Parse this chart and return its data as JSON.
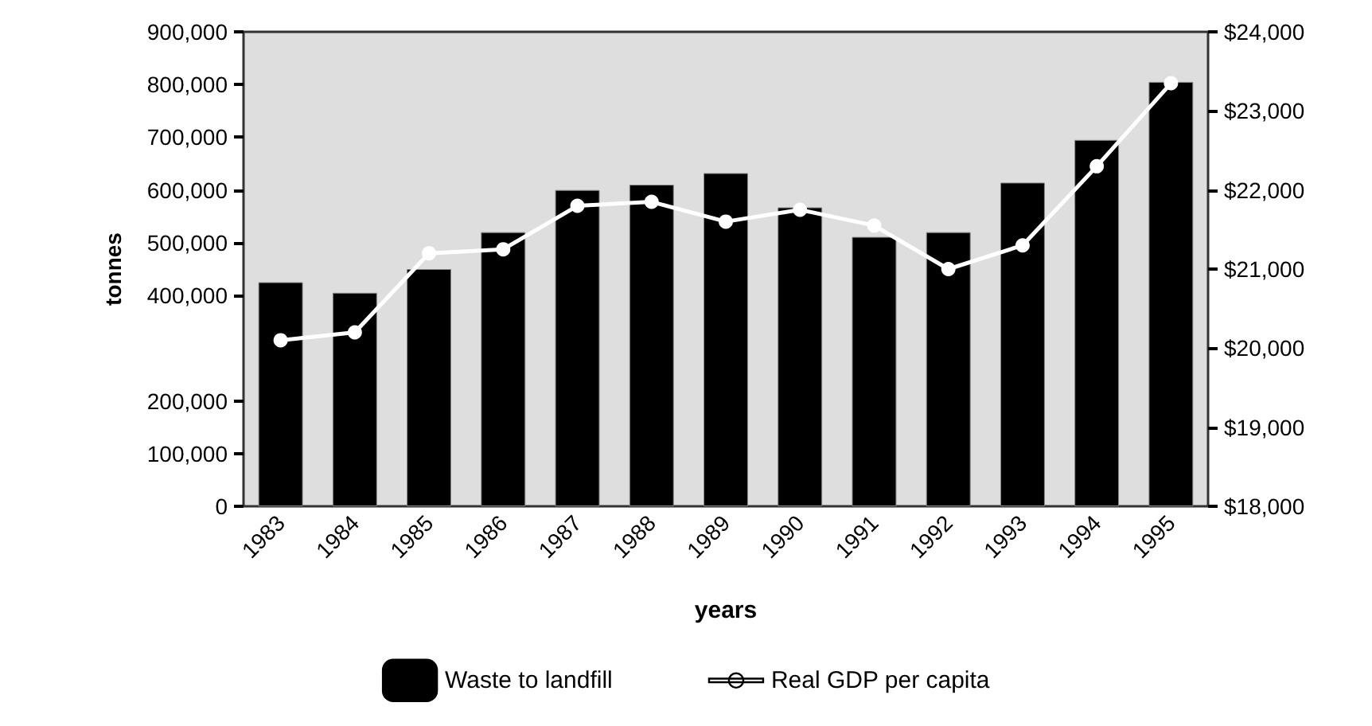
{
  "chart_data": {
    "type": "bar",
    "xlabel": "years",
    "ylabel": "tonnes",
    "categories": [
      "1983",
      "1984",
      "1985",
      "1986",
      "1987",
      "1988",
      "1989",
      "1990",
      "1991",
      "1992",
      "1993",
      "1994",
      "1995"
    ],
    "series": [
      {
        "name": "Waste to landfill",
        "color": "#000000",
        "values": [
          425000,
          405000,
          450000,
          520000,
          600000,
          610000,
          632000,
          567000,
          511000,
          520000,
          614000,
          695000,
          805000
        ]
      },
      {
        "name": "Real GDP per capita",
        "type": "line",
        "axis": "y2",
        "color": "#ffffff",
        "values": [
          20100,
          20200,
          21200,
          21250,
          21800,
          21850,
          21600,
          21750,
          21550,
          21000,
          21300,
          22300,
          23350
        ]
      }
    ],
    "ylim": [
      0,
      900000
    ],
    "yticks": [
      {
        "value": 0,
        "label": "0"
      },
      {
        "value": 100000,
        "label": "100,000"
      },
      {
        "value": 200000,
        "label": "200,000"
      },
      {
        "value": 400000,
        "label": "400,000"
      },
      {
        "value": 500000,
        "label": "500,000"
      },
      {
        "value": 600000,
        "label": "600,000"
      },
      {
        "value": 700000,
        "label": "700,000"
      },
      {
        "value": 800000,
        "label": "800,000"
      },
      {
        "value": 900000,
        "label": "900,000"
      }
    ],
    "y2lim": [
      18000,
      24000
    ],
    "y2ticks": [
      {
        "value": 18000,
        "label": "$18,000"
      },
      {
        "value": 19000,
        "label": "$19,000"
      },
      {
        "value": 20000,
        "label": "$20,000"
      },
      {
        "value": 21000,
        "label": "$21,000"
      },
      {
        "value": 22000,
        "label": "$22,000"
      },
      {
        "value": 23000,
        "label": "$23,000"
      },
      {
        "value": 24000,
        "label": "$24,000"
      }
    ],
    "grid": false,
    "legend": "bottom",
    "marker": "circle",
    "line_style": "solid"
  }
}
